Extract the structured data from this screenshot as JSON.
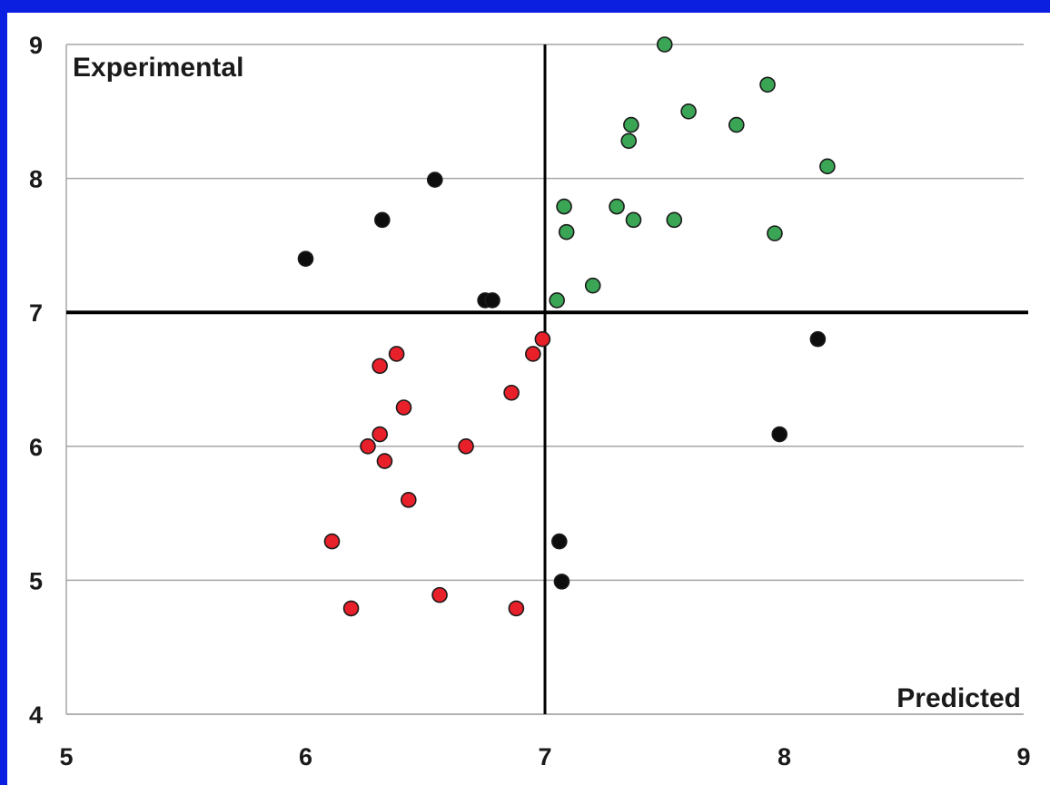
{
  "chart_data": {
    "type": "scatter",
    "title": "",
    "xlabel": "Predicted",
    "ylabel": "Experimental",
    "xlim": [
      5,
      9
    ],
    "ylim": [
      4,
      9
    ],
    "x_ticks": [
      "5",
      "6",
      "7",
      "8",
      "9"
    ],
    "y_ticks": [
      "4",
      "5",
      "6",
      "7",
      "8",
      "9"
    ],
    "grid": "horizontal",
    "thresholds": {
      "x": 7,
      "y": 7
    },
    "colors": {
      "green": "#3aa655",
      "red": "#e8202a",
      "black": "#0d0d0d",
      "frame": "#0a1fe0"
    },
    "series": [
      {
        "color_key": "green",
        "points": [
          [
            7.5,
            9.0
          ],
          [
            7.93,
            8.7
          ],
          [
            7.6,
            8.5
          ],
          [
            7.36,
            8.4
          ],
          [
            7.8,
            8.4
          ],
          [
            7.35,
            8.28
          ],
          [
            8.18,
            8.09
          ],
          [
            7.08,
            7.79
          ],
          [
            7.3,
            7.79
          ],
          [
            7.37,
            7.69
          ],
          [
            7.54,
            7.69
          ],
          [
            7.09,
            7.6
          ],
          [
            7.96,
            7.59
          ],
          [
            7.2,
            7.2
          ],
          [
            7.05,
            7.09
          ]
        ]
      },
      {
        "color_key": "black",
        "points": [
          [
            6.54,
            7.99
          ],
          [
            6.32,
            7.69
          ],
          [
            6.0,
            7.4
          ],
          [
            6.75,
            7.09
          ],
          [
            6.78,
            7.09
          ],
          [
            8.14,
            6.8
          ],
          [
            7.98,
            6.09
          ],
          [
            7.06,
            5.29
          ],
          [
            7.07,
            4.99
          ]
        ]
      },
      {
        "color_key": "red",
        "points": [
          [
            6.99,
            6.8
          ],
          [
            6.38,
            6.69
          ],
          [
            6.95,
            6.69
          ],
          [
            6.31,
            6.6
          ],
          [
            6.86,
            6.4
          ],
          [
            6.41,
            6.29
          ],
          [
            6.31,
            6.09
          ],
          [
            6.26,
            6.0
          ],
          [
            6.67,
            6.0
          ],
          [
            6.33,
            5.89
          ],
          [
            6.43,
            5.6
          ],
          [
            6.11,
            5.29
          ],
          [
            6.56,
            4.89
          ],
          [
            6.19,
            4.79
          ],
          [
            6.88,
            4.79
          ]
        ]
      }
    ]
  }
}
